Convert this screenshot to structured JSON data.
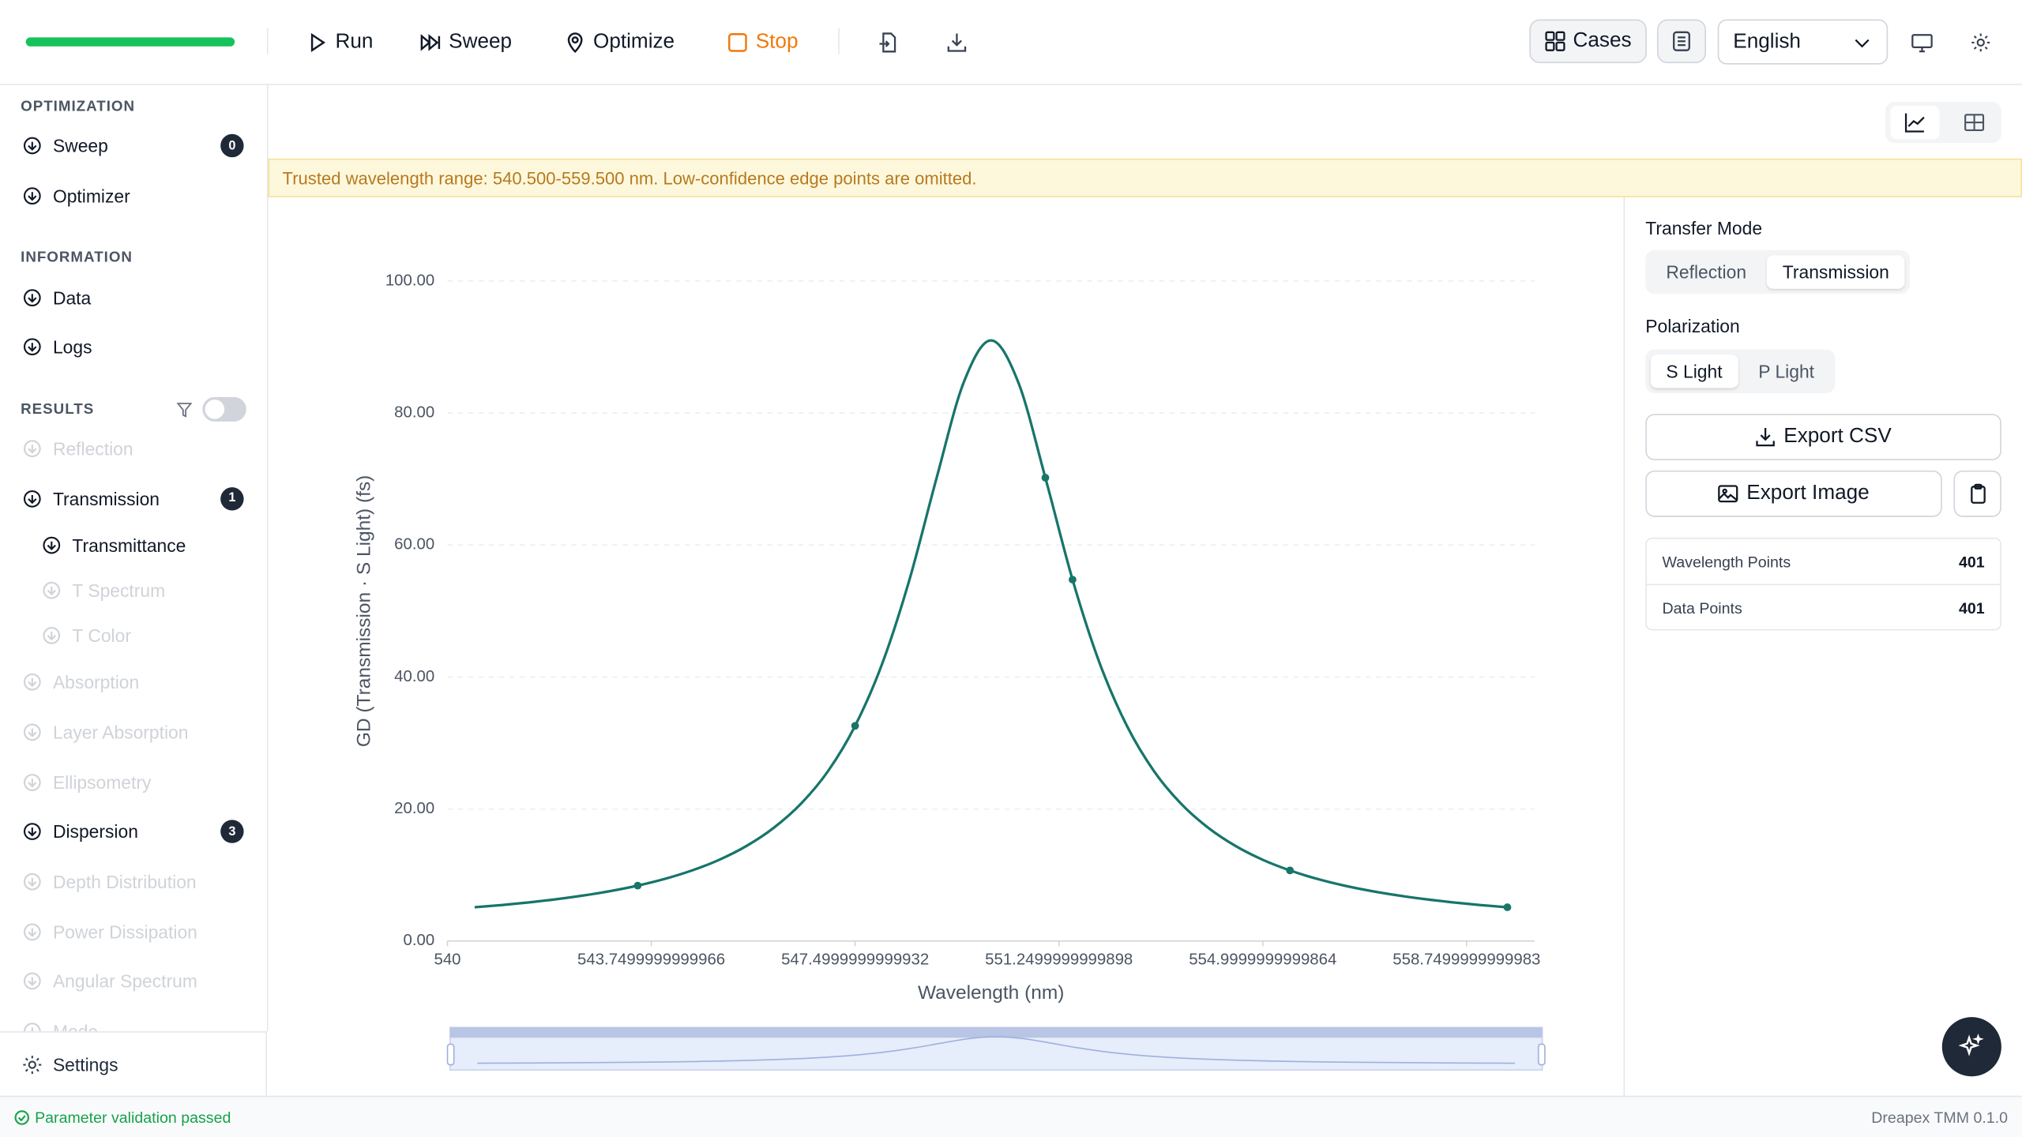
{
  "toolbar": {
    "run": "Run",
    "sweep": "Sweep",
    "optimize": "Optimize",
    "stop": "Stop",
    "cases": "Cases",
    "language": "English"
  },
  "sidebar": {
    "sections": [
      {
        "title": "OPTIMIZATION",
        "items": [
          {
            "label": "Sweep",
            "badge": 0
          },
          {
            "label": "Optimizer"
          }
        ]
      },
      {
        "title": "INFORMATION",
        "items": [
          {
            "label": "Data"
          },
          {
            "label": "Logs"
          }
        ]
      },
      {
        "title": "RESULTS",
        "toggle": false,
        "items": [
          {
            "label": "Reflection",
            "disabled": true
          },
          {
            "label": "Transmission",
            "badge": 1
          },
          {
            "label": "Transmittance",
            "level": 2
          },
          {
            "label": "T Spectrum",
            "level": 2,
            "disabled": true
          },
          {
            "label": "T Color",
            "level": 2,
            "disabled": true
          },
          {
            "label": "Absorption",
            "disabled": true
          },
          {
            "label": "Layer Absorption",
            "disabled": true
          },
          {
            "label": "Ellipsometry",
            "disabled": true
          },
          {
            "label": "Dispersion",
            "badge": 3
          },
          {
            "label": "Depth Distribution",
            "disabled": true
          },
          {
            "label": "Power Dissipation",
            "disabled": true
          },
          {
            "label": "Angular Spectrum",
            "disabled": true
          },
          {
            "label": "Mode",
            "disabled": true
          }
        ]
      }
    ],
    "settings": "Settings"
  },
  "banner": "Trusted wavelength range: 540.500-559.500 nm. Low-confidence edge points are omitted.",
  "chart_data": {
    "type": "line",
    "x_label": "Wavelength (nm)",
    "y_label": "GD (Transmission · S Light) (fs)",
    "color": "#17756a",
    "x": [
      540.5,
      541,
      541.5,
      542,
      542.5,
      543,
      543.5,
      544,
      544.5,
      545,
      545.5,
      546,
      546.5,
      547,
      547.5,
      548,
      548.5,
      549,
      549.5,
      550,
      550.5,
      551,
      551.5,
      552,
      552.5,
      553,
      553.5,
      554,
      554.5,
      555,
      555.5,
      556,
      556.5,
      557,
      557.5,
      558,
      558.5,
      559,
      559.5
    ],
    "values": [
      5.12,
      5.46,
      5.86,
      6.33,
      6.9,
      7.58,
      8.4,
      9.42,
      10.7,
      12.31,
      14.4,
      17.14,
      20.78,
      25.73,
      32.61,
      42.07,
      54.76,
      70.2,
      84.69,
      91,
      84.69,
      70.2,
      54.76,
      42.07,
      32.61,
      25.73,
      20.78,
      17.14,
      14.4,
      12.31,
      10.7,
      9.42,
      8.4,
      7.58,
      6.9,
      6.33,
      5.86,
      5.46,
      5.12
    ],
    "xlim": [
      540,
      560
    ],
    "xticks": [
      540,
      543.7499999999966,
      547.4999999999932,
      551.2499999999898,
      554.9999999999864,
      558.7499999999983
    ],
    "ylim": [
      0,
      100
    ],
    "yticks": [
      {
        "value": 0,
        "label": "0.00"
      },
      {
        "value": 20,
        "label": "20.00"
      },
      {
        "value": 40,
        "label": "40.00"
      },
      {
        "value": 60,
        "label": "60.00"
      },
      {
        "value": 80,
        "label": "80.00"
      },
      {
        "value": 100,
        "label": "100.00"
      }
    ],
    "grid": true
  },
  "panel": {
    "transfer_mode": {
      "label": "Transfer Mode",
      "options": [
        "Reflection",
        "Transmission"
      ],
      "selected": 1
    },
    "polarization": {
      "label": "Polarization",
      "options": [
        "S Light",
        "P Light"
      ],
      "selected": 0
    },
    "export_csv": "Export CSV",
    "export_image": "Export Image",
    "stats": [
      {
        "label": "Wavelength Points",
        "value": 401
      },
      {
        "label": "Data Points",
        "value": 401
      }
    ]
  },
  "status": {
    "message": "Parameter validation passed",
    "version": "Dreapex TMM 0.1.0"
  }
}
